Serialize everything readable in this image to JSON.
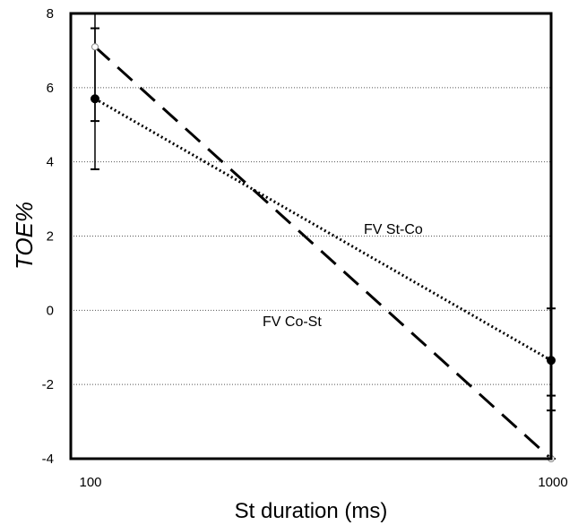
{
  "chart_data": {
    "type": "line",
    "title": "",
    "xlabel": "St duration (ms)",
    "ylabel": "TOE%",
    "x_scale": "log",
    "xlim": [
      100,
      1000
    ],
    "ylim": [
      -4,
      8
    ],
    "x_ticks": [
      "100",
      "1000"
    ],
    "y_ticks": [
      "8",
      "6",
      "4",
      "2",
      "0",
      "-2",
      "-4"
    ],
    "grid": "horizontal dotted",
    "series": [
      {
        "name": "FV St-Co",
        "style": "dotted",
        "marker": "filled-circle",
        "x": [
          100,
          1000
        ],
        "y": [
          5.7,
          -1.35
        ],
        "err_low": [
          3.8,
          -2.7
        ],
        "err_high": [
          7.6,
          0.05
        ]
      },
      {
        "name": "FV Co-St",
        "style": "dashed",
        "marker": "open-circle",
        "x": [
          100,
          1000
        ],
        "y": [
          7.1,
          -4.0
        ],
        "err_low": [
          5.1,
          -4.0
        ],
        "err_high": [
          8.0,
          -2.3
        ]
      }
    ],
    "annotations": [
      {
        "text": "FV St-Co",
        "series": 0
      },
      {
        "text": "FV Co-St",
        "series": 1
      }
    ]
  }
}
